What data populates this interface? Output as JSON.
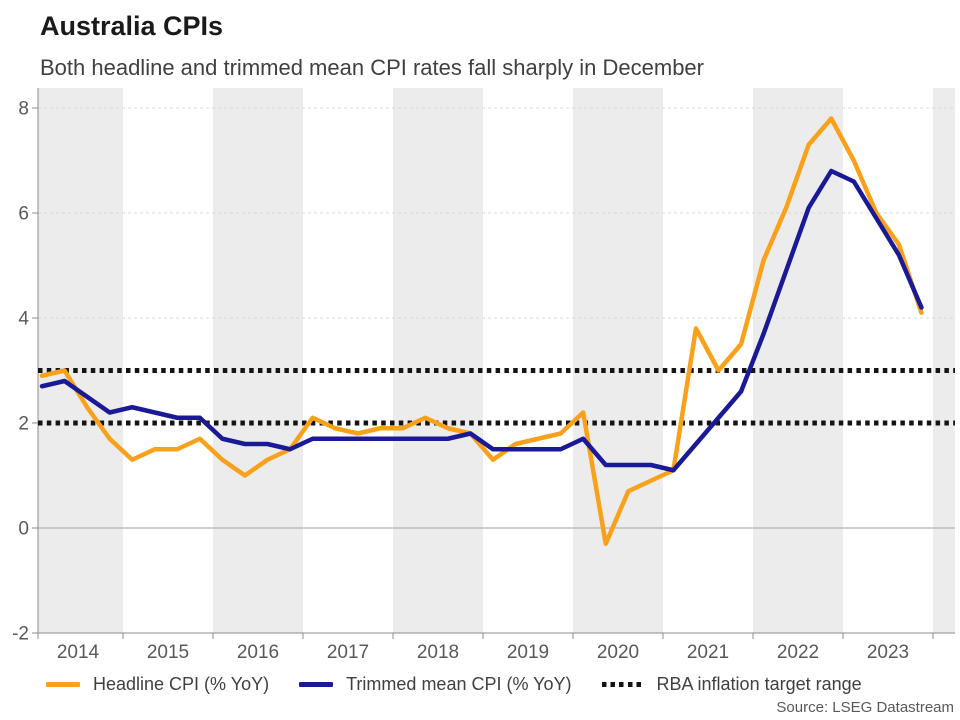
{
  "header": {
    "title": "Australia CPIs",
    "subtitle": "Both headline and trimmed mean CPI rates fall sharply in December"
  },
  "source": "Source: LSEG Datastream",
  "legend": [
    {
      "label": "Headline CPI (% YoY)",
      "swatch": "solid",
      "color": "#F9A11B"
    },
    {
      "label": "Trimmed mean CPI (% YoY)",
      "swatch": "solid",
      "color": "#1A1A96"
    },
    {
      "label": "RBA inflation target range",
      "swatch": "dotted",
      "color": "#141414"
    }
  ],
  "chart_data": {
    "type": "line",
    "title": "Australia CPIs",
    "subtitle": "Both headline and trimmed mean CPI rates fall sharply in December",
    "frequency": "quarterly",
    "period_start": "2014-Q1",
    "period_end": "2023-Q4",
    "x_tick_labels": [
      "2014",
      "2015",
      "2016",
      "2017",
      "2018",
      "2019",
      "2020",
      "2021",
      "2022",
      "2023"
    ],
    "y_ticks": [
      8,
      6,
      4,
      2,
      0,
      -2
    ],
    "y_range": [
      -2,
      8.35
    ],
    "grid": "horizontal-dashed",
    "legend_position": "bottom",
    "shaded_years": [
      2014,
      2016,
      2018,
      2020,
      2022,
      2024
    ],
    "target_band": {
      "label": "RBA inflation target range",
      "low": 2,
      "high": 3,
      "style": "dotted",
      "color": "#141414"
    },
    "series": [
      {
        "name": "Headline CPI (% YoY)",
        "color": "#F9A11B",
        "values": [
          2.9,
          3.0,
          2.3,
          1.7,
          1.3,
          1.5,
          1.5,
          1.7,
          1.3,
          1.0,
          1.3,
          1.5,
          2.1,
          1.9,
          1.8,
          1.9,
          1.9,
          2.1,
          1.9,
          1.8,
          1.3,
          1.6,
          1.7,
          1.8,
          2.2,
          -0.3,
          0.7,
          0.9,
          1.1,
          3.8,
          3.0,
          3.5,
          5.1,
          6.1,
          7.3,
          7.8,
          7.0,
          6.0,
          5.4,
          4.1
        ]
      },
      {
        "name": "Trimmed mean CPI (% YoY)",
        "color": "#1A1A96",
        "values": [
          2.7,
          2.8,
          2.5,
          2.2,
          2.3,
          2.2,
          2.1,
          2.1,
          1.7,
          1.6,
          1.6,
          1.5,
          1.7,
          1.7,
          1.7,
          1.7,
          1.7,
          1.7,
          1.7,
          1.8,
          1.5,
          1.5,
          1.5,
          1.5,
          1.7,
          1.2,
          1.2,
          1.2,
          1.1,
          1.6,
          2.1,
          2.6,
          3.7,
          4.9,
          6.1,
          6.8,
          6.6,
          5.9,
          5.2,
          4.2
        ]
      }
    ]
  }
}
